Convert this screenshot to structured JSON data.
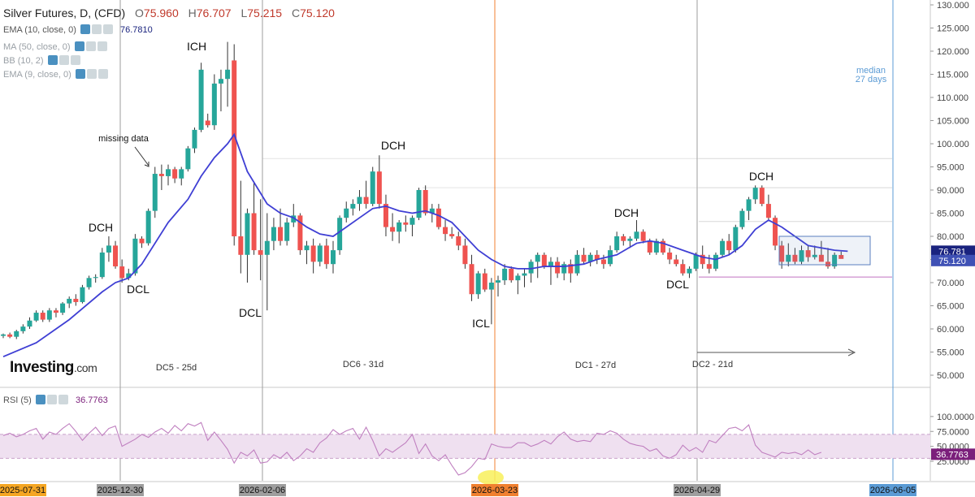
{
  "header": {
    "title": "Silver Futures, D, (CFD)",
    "open_label": "O",
    "open": "75.960",
    "high_label": "H",
    "high": "76.707",
    "low_label": "L",
    "low": "75.215",
    "close_label": "C",
    "close": "75.120"
  },
  "indicators": [
    {
      "label": "EMA (10, close, 0)",
      "value": "76.7810",
      "value_color": "#1a237e"
    },
    {
      "label": "MA (50, close, 0)",
      "value": ""
    },
    {
      "label": "BB (10, 2)",
      "value": ""
    },
    {
      "label": "EMA (9, close, 0)",
      "value": ""
    }
  ],
  "rsi_legend": {
    "label": "RSI (5)",
    "value": "36.7763"
  },
  "logo": {
    "text": "Investing",
    "suffix": ".com"
  },
  "colors": {
    "up": "#26a69a",
    "down": "#ef5350",
    "ema": "#3f3fd4",
    "rsi": "#c080c0",
    "rsi_band": "#efe0f0",
    "vline_gray": "#9e9e9e",
    "vline_orange": "#f08030",
    "vline_blue": "#5b9bd5",
    "support": "#c070c0",
    "box": "#5b7fbf"
  },
  "chart_data": [
    {
      "type": "candlestick",
      "title": "Silver Futures, D, (CFD)",
      "ylim": [
        45,
        130
      ],
      "y_ticks": [
        50,
        55,
        60,
        65,
        70,
        75,
        80,
        85,
        90,
        95,
        100,
        105,
        110,
        115,
        120,
        125,
        130
      ],
      "x_ticks": [
        "2025-07-31",
        "2025-12-30",
        "2026-02-06",
        "2026-03-23",
        "2026-04-29",
        "2026-06-05"
      ],
      "ohlc": [
        [
          58.5,
          59.0,
          58.0,
          58.8
        ],
        [
          58.8,
          59.2,
          58.0,
          58.3
        ],
        [
          58.3,
          59.8,
          57.8,
          59.5
        ],
        [
          59.5,
          61.0,
          59.0,
          60.5
        ],
        [
          60.5,
          62.5,
          60.0,
          61.8
        ],
        [
          61.8,
          64.0,
          61.5,
          63.5
        ],
        [
          63.5,
          64.0,
          61.5,
          62.0
        ],
        [
          62.0,
          64.5,
          61.5,
          64.0
        ],
        [
          64.0,
          64.5,
          62.5,
          63.5
        ],
        [
          63.5,
          65.8,
          63.0,
          65.5
        ],
        [
          65.5,
          67.0,
          64.5,
          66.5
        ],
        [
          66.5,
          67.5,
          65.0,
          65.8
        ],
        [
          65.8,
          69.5,
          65.5,
          69.0
        ],
        [
          69.0,
          71.5,
          68.5,
          71.0
        ],
        [
          71.0,
          71.8,
          70.0,
          71.2
        ],
        [
          71.2,
          77.5,
          70.8,
          76.5
        ],
        [
          76.5,
          80.0,
          74.5,
          78.0
        ],
        [
          78.0,
          79.0,
          73.0,
          73.5
        ],
        [
          73.5,
          75.0,
          70.0,
          71.0
        ],
        [
          71.0,
          73.0,
          70.5,
          72.0
        ],
        [
          72.0,
          80.5,
          71.5,
          79.5
        ],
        [
          79.5,
          80.0,
          77.5,
          78.5
        ],
        [
          78.5,
          86.0,
          78.0,
          85.5
        ],
        [
          85.5,
          95.0,
          84.0,
          93.5
        ],
        [
          93.5,
          95.5,
          90.0,
          93.0
        ],
        [
          93.0,
          95.5,
          91.0,
          94.5
        ],
        [
          94.5,
          95.0,
          91.5,
          92.5
        ],
        [
          92.5,
          95.0,
          91.0,
          94.5
        ],
        [
          94.5,
          99.5,
          94.0,
          99.0
        ],
        [
          99.0,
          103.5,
          98.0,
          103.0
        ],
        [
          103.0,
          117.5,
          102.5,
          116.0
        ],
        [
          105.0,
          106.5,
          103.5,
          104.0
        ],
        [
          104.0,
          115.0,
          103.0,
          113.0
        ],
        [
          113.0,
          116.0,
          107.0,
          114.0
        ],
        [
          114.0,
          122.0,
          108.0,
          116.0
        ],
        [
          118.0,
          121.5,
          78.0,
          80.0
        ],
        [
          80.0,
          92.0,
          72.0,
          76.0
        ],
        [
          76.0,
          86.0,
          70.0,
          85.0
        ],
        [
          85.0,
          91.5,
          76.0,
          77.0
        ],
        [
          77.0,
          88.0,
          70.5,
          76.0
        ],
        [
          76.0,
          85.0,
          64.0,
          79.0
        ],
        [
          79.0,
          84.0,
          77.0,
          82.0
        ],
        [
          82.0,
          86.0,
          78.0,
          79.0
        ],
        [
          79.0,
          84.0,
          78.0,
          83.0
        ],
        [
          83.0,
          87.0,
          82.0,
          84.5
        ],
        [
          84.5,
          85.0,
          76.0,
          77.0
        ],
        [
          77.0,
          79.0,
          74.0,
          78.0
        ],
        [
          78.0,
          79.5,
          72.0,
          74.5
        ],
        [
          74.5,
          78.5,
          73.5,
          78.0
        ],
        [
          78.0,
          79.5,
          73.0,
          74.0
        ],
        [
          74.0,
          79.0,
          72.0,
          77.0
        ],
        [
          77.0,
          84.5,
          76.0,
          84.0
        ],
        [
          84.0,
          87.5,
          83.0,
          86.0
        ],
        [
          86.0,
          88.0,
          84.5,
          87.0
        ],
        [
          87.0,
          90.0,
          85.5,
          88.5
        ],
        [
          88.5,
          92.0,
          86.0,
          87.0
        ],
        [
          87.0,
          95.0,
          86.5,
          94.0
        ],
        [
          94.0,
          97.5,
          86.0,
          87.0
        ],
        [
          87.0,
          89.0,
          80.0,
          82.0
        ],
        [
          82.0,
          85.0,
          79.0,
          81.0
        ],
        [
          81.0,
          83.5,
          78.5,
          83.0
        ],
        [
          83.0,
          84.5,
          81.0,
          82.5
        ],
        [
          82.5,
          84.5,
          80.0,
          84.0
        ],
        [
          84.0,
          90.5,
          83.5,
          90.0
        ],
        [
          90.0,
          91.0,
          84.5,
          85.0
        ],
        [
          85.0,
          87.0,
          83.0,
          86.0
        ],
        [
          86.0,
          87.0,
          81.5,
          82.0
        ],
        [
          82.0,
          83.5,
          79.0,
          80.5
        ],
        [
          80.5,
          82.0,
          79.5,
          80.0
        ],
        [
          80.0,
          81.0,
          77.0,
          78.0
        ],
        [
          78.0,
          79.5,
          73.0,
          74.0
        ],
        [
          74.0,
          76.0,
          66.0,
          67.5
        ],
        [
          67.5,
          72.5,
          66.5,
          72.0
        ],
        [
          72.0,
          73.0,
          68.0,
          68.5
        ],
        [
          68.5,
          71.0,
          61.0,
          70.0
        ],
        [
          70.0,
          71.5,
          67.0,
          70.5
        ],
        [
          70.5,
          74.0,
          69.5,
          73.0
        ],
        [
          73.0,
          73.5,
          70.0,
          70.5
        ],
        [
          70.5,
          72.0,
          67.5,
          71.5
        ],
        [
          71.5,
          73.0,
          69.0,
          72.0
        ],
        [
          72.0,
          75.0,
          70.0,
          74.5
        ],
        [
          74.5,
          76.5,
          71.0,
          76.0
        ],
        [
          76.0,
          76.5,
          73.0,
          73.5
        ],
        [
          73.5,
          75.5,
          69.5,
          74.5
        ],
        [
          74.5,
          75.5,
          71.0,
          72.0
        ],
        [
          72.0,
          74.5,
          70.5,
          74.0
        ],
        [
          74.0,
          75.0,
          70.0,
          72.0
        ],
        [
          72.0,
          77.0,
          71.5,
          76.0
        ],
        [
          76.0,
          77.5,
          74.0,
          74.5
        ],
        [
          74.5,
          76.5,
          73.5,
          76.0
        ],
        [
          76.0,
          77.0,
          74.0,
          75.0
        ],
        [
          75.0,
          76.0,
          73.0,
          74.0
        ],
        [
          74.0,
          78.0,
          73.5,
          77.0
        ],
        [
          77.0,
          81.0,
          76.5,
          80.0
        ],
        [
          80.0,
          80.5,
          78.0,
          79.0
        ],
        [
          79.0,
          80.0,
          77.5,
          79.5
        ],
        [
          79.5,
          83.5,
          79.0,
          81.0
        ],
        [
          81.0,
          81.5,
          78.5,
          79.0
        ],
        [
          79.0,
          79.5,
          76.0,
          76.5
        ],
        [
          76.5,
          79.5,
          76.0,
          79.0
        ],
        [
          79.0,
          79.5,
          76.0,
          76.5
        ],
        [
          76.5,
          77.5,
          74.0,
          75.0
        ],
        [
          75.0,
          76.0,
          73.5,
          74.0
        ],
        [
          74.0,
          75.0,
          71.5,
          72.0
        ],
        [
          72.0,
          73.5,
          71.0,
          73.0
        ],
        [
          73.0,
          76.5,
          72.5,
          76.0
        ],
        [
          76.0,
          78.0,
          73.0,
          74.0
        ],
        [
          74.0,
          76.0,
          72.0,
          73.0
        ],
        [
          73.0,
          76.5,
          72.5,
          76.0
        ],
        [
          76.0,
          79.5,
          75.5,
          79.0
        ],
        [
          79.0,
          80.5,
          76.0,
          77.0
        ],
        [
          77.0,
          82.5,
          76.5,
          82.0
        ],
        [
          82.0,
          86.0,
          81.5,
          85.5
        ],
        [
          85.5,
          88.5,
          83.5,
          88.0
        ],
        [
          88.0,
          91.0,
          87.0,
          90.5
        ],
        [
          90.5,
          91.0,
          86.5,
          87.0
        ],
        [
          87.0,
          89.0,
          83.5,
          84.0
        ],
        [
          84.0,
          84.5,
          77.0,
          78.0
        ],
        [
          78.0,
          79.0,
          73.0,
          74.5
        ],
        [
          74.5,
          78.5,
          73.5,
          76.0
        ],
        [
          76.0,
          77.5,
          74.0,
          74.5
        ],
        [
          74.5,
          78.0,
          74.0,
          77.0
        ],
        [
          77.0,
          78.0,
          74.5,
          75.5
        ],
        [
          75.5,
          78.0,
          75.0,
          76.0
        ],
        [
          76.0,
          79.0,
          75.0,
          74.5
        ],
        [
          74.5,
          77.5,
          73.0,
          73.5
        ],
        [
          73.5,
          76.5,
          73.0,
          76.0
        ],
        [
          75.96,
          76.707,
          75.215,
          75.12
        ]
      ],
      "ema": [
        [
          0,
          54.0
        ],
        [
          5,
          57.0
        ],
        [
          10,
          62.0
        ],
        [
          15,
          68.0
        ],
        [
          17,
          70.0
        ],
        [
          19,
          71.0
        ],
        [
          21,
          74.0
        ],
        [
          25,
          83.0
        ],
        [
          28,
          88.0
        ],
        [
          30,
          93.0
        ],
        [
          32,
          97.0
        ],
        [
          34,
          100.0
        ],
        [
          35,
          102.0
        ],
        [
          37,
          94.0
        ],
        [
          40,
          87.0
        ],
        [
          42,
          85.0
        ],
        [
          44,
          84.0
        ],
        [
          46,
          82.0
        ],
        [
          48,
          80.5
        ],
        [
          50,
          80.0
        ],
        [
          52,
          82.0
        ],
        [
          54,
          84.0
        ],
        [
          56,
          86.0
        ],
        [
          58,
          86.5
        ],
        [
          60,
          85.5
        ],
        [
          62,
          85.0
        ],
        [
          64,
          85.5
        ],
        [
          66,
          84.5
        ],
        [
          68,
          83.0
        ],
        [
          70,
          80.0
        ],
        [
          72,
          77.0
        ],
        [
          74,
          75.0
        ],
        [
          76,
          73.5
        ],
        [
          78,
          73.0
        ],
        [
          80,
          73.0
        ],
        [
          82,
          73.5
        ],
        [
          85,
          73.5
        ],
        [
          88,
          74.0
        ],
        [
          90,
          75.0
        ],
        [
          93,
          76.0
        ],
        [
          96,
          78.5
        ],
        [
          98,
          79.0
        ],
        [
          100,
          78.5
        ],
        [
          103,
          77.0
        ],
        [
          106,
          75.5
        ],
        [
          108,
          75.0
        ],
        [
          110,
          76.0
        ],
        [
          112,
          78.0
        ],
        [
          114,
          81.5
        ],
        [
          116,
          83.5
        ],
        [
          118,
          82.0
        ],
        [
          120,
          80.0
        ],
        [
          122,
          78.0
        ],
        [
          124,
          77.5
        ],
        [
          126,
          77.0
        ],
        [
          128,
          76.781
        ]
      ],
      "price_labels": [
        "76.781",
        "75.120"
      ],
      "annotations": [
        "DCH",
        "ICH",
        "missing data",
        "DCL",
        "DCL",
        "DCH",
        "ICL",
        "DCH",
        "DCL",
        "DCH",
        "median",
        "27 days"
      ],
      "cycle_labels": [
        "DC5 - 25d",
        "DC6 - 31d",
        "DC1 - 27d",
        "DC2 - 21d"
      ]
    },
    {
      "type": "line",
      "title": "RSI (5)",
      "ylim": [
        0,
        100
      ],
      "y_ticks": [
        25,
        50,
        75,
        100
      ],
      "y_tick_labels": [
        "25.0000",
        "50.0000",
        "75.0000",
        "100.0000"
      ],
      "band": [
        30,
        70
      ],
      "current_label": "36.7763",
      "values": [
        68,
        72,
        66,
        70,
        76,
        80,
        62,
        74,
        70,
        80,
        88,
        75,
        60,
        72,
        82,
        68,
        80,
        84,
        50,
        56,
        62,
        70,
        65,
        74,
        80,
        72,
        85,
        76,
        88,
        84,
        90,
        60,
        74,
        60,
        45,
        22,
        40,
        34,
        44,
        22,
        24,
        36,
        30,
        40,
        26,
        34,
        46,
        40,
        56,
        64,
        78,
        70,
        76,
        80,
        62,
        82,
        60,
        34,
        46,
        40,
        48,
        56,
        70,
        38,
        54,
        34,
        26,
        36,
        18,
        2,
        6,
        16,
        30,
        28,
        54,
        50,
        48,
        48,
        56,
        56,
        50,
        54,
        60,
        54,
        66,
        74,
        62,
        58,
        60,
        58,
        72,
        70,
        76,
        72,
        62,
        55,
        52,
        50,
        42,
        46,
        34,
        30,
        36,
        52,
        42,
        48,
        40,
        60,
        56,
        68,
        80,
        82,
        76,
        86,
        52,
        40,
        36,
        32,
        40,
        38,
        40,
        36,
        44,
        36,
        40
      ]
    }
  ]
}
